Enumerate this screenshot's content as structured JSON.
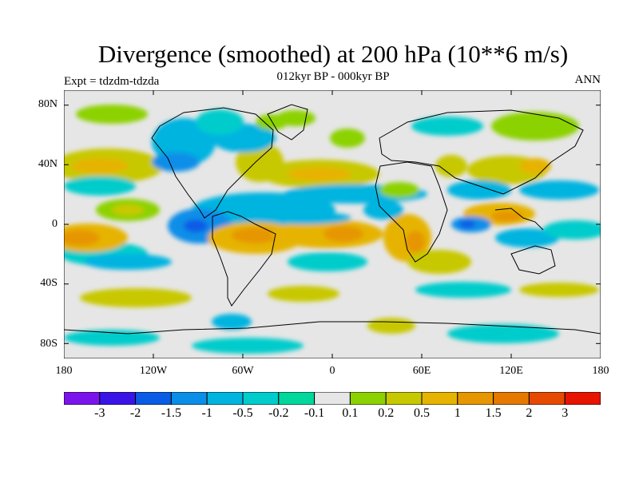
{
  "map": {
    "title": "Divergence (smoothed) at 200 hPa (10**6 m/s)",
    "subtitle": "012kyr BP - 000kyr BP",
    "left_note": "Expt = tdzdm-tdzda",
    "right_note": "ANN",
    "lat_labels": [
      "80N",
      "40N",
      "0",
      "40S",
      "80S"
    ],
    "lat_values": [
      80,
      40,
      0,
      -40,
      -80
    ],
    "lon_labels": [
      "180",
      "120W",
      "60W",
      "0",
      "60E",
      "120E",
      "180"
    ],
    "lon_values": [
      -180,
      -120,
      -60,
      0,
      60,
      120,
      180
    ],
    "extent": {
      "lon": [
        -180,
        180
      ],
      "lat": [
        -90,
        90
      ]
    }
  },
  "colorbar": {
    "colors": [
      "#7b14ec",
      "#3a14e6",
      "#0a5ce6",
      "#0a8ee8",
      "#00b4e0",
      "#00cccc",
      "#00d79b",
      "#e6e6e6",
      "#8cd200",
      "#c8c800",
      "#e6b400",
      "#e69600",
      "#e67800",
      "#e64a00",
      "#e61400"
    ],
    "labels": [
      "-3",
      "-2",
      "-1.5",
      "-1",
      "-0.5",
      "-0.2",
      "-0.1",
      "0.1",
      "0.2",
      "0.5",
      "1",
      "1.5",
      "2",
      "3"
    ]
  },
  "field_colors": {
    "neutral": "#e6e6e6",
    "cyan": "#00cccc",
    "blue_light": "#00b4e0",
    "blue": "#0a8ee8",
    "blue_dark": "#0a5ce6",
    "green": "#8cd200",
    "yellow": "#c8c800",
    "orange": "#e6b400",
    "orange_dark": "#e69600",
    "red_orange": "#e67800",
    "red": "#e64a00"
  }
}
